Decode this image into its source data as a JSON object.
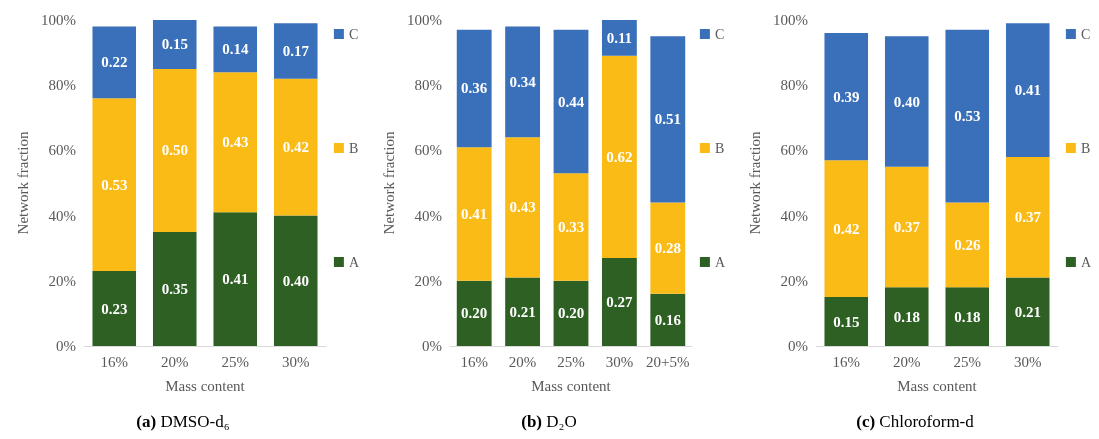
{
  "chart_data": [
    {
      "type": "bar",
      "title": "(a) DMSO-d₆",
      "xlabel": "Mass content",
      "ylabel": "Network fraction",
      "categories": [
        "16%",
        "20%",
        "25%",
        "30%"
      ],
      "stacked": true,
      "legend": "right",
      "ylim": [
        0,
        1
      ],
      "yticks": [
        {
          "value": 0,
          "label": "0%"
        },
        {
          "value": 0.2,
          "label": "20%"
        },
        {
          "value": 0.4,
          "label": "40%"
        },
        {
          "value": 0.6,
          "label": "60%"
        },
        {
          "value": 0.8,
          "label": "80%"
        },
        {
          "value": 1,
          "label": "100%"
        }
      ],
      "grid": false,
      "series": [
        {
          "name": "A",
          "color": "#2e6023",
          "values": [
            0.23,
            0.35,
            0.41,
            0.4
          ],
          "value_labels": [
            "0.23",
            "0.35",
            "0.41",
            "0.40"
          ]
        },
        {
          "name": "B",
          "color": "#fbbb17",
          "values": [
            0.53,
            0.5,
            0.43,
            0.42
          ],
          "value_labels": [
            "0.53",
            "0.50",
            "0.43",
            "0.42"
          ]
        },
        {
          "name": "C",
          "color": "#3a70b9",
          "values": [
            0.22,
            0.15,
            0.14,
            0.17
          ],
          "value_labels": [
            "0.22",
            "0.15",
            "0.14",
            "0.17"
          ]
        }
      ]
    },
    {
      "type": "bar",
      "title": "(b) D₂O",
      "xlabel": "Mass content",
      "ylabel": "Network fraction",
      "categories": [
        "16%",
        "20%",
        "25%",
        "30%",
        "20+5%"
      ],
      "stacked": true,
      "legend": "right",
      "ylim": [
        0,
        1
      ],
      "yticks": [
        {
          "value": 0,
          "label": "0%"
        },
        {
          "value": 0.2,
          "label": "20%"
        },
        {
          "value": 0.4,
          "label": "40%"
        },
        {
          "value": 0.6,
          "label": "60%"
        },
        {
          "value": 0.8,
          "label": "80%"
        },
        {
          "value": 1,
          "label": "100%"
        }
      ],
      "grid": false,
      "series": [
        {
          "name": "A",
          "color": "#2e6023",
          "values": [
            0.2,
            0.21,
            0.2,
            0.27,
            0.16
          ],
          "value_labels": [
            "0.20",
            "0.21",
            "0.20",
            "0.27",
            "0.16"
          ]
        },
        {
          "name": "B",
          "color": "#fbbb17",
          "values": [
            0.41,
            0.43,
            0.33,
            0.62,
            0.28
          ],
          "value_labels": [
            "0.41",
            "0.43",
            "0.33",
            "0.62",
            "0.28"
          ]
        },
        {
          "name": "C",
          "color": "#3a70b9",
          "values": [
            0.36,
            0.34,
            0.44,
            0.11,
            0.51
          ],
          "value_labels": [
            "0.36",
            "0.34",
            "0.44",
            "0.11",
            "0.51"
          ]
        }
      ]
    },
    {
      "type": "bar",
      "title": "(c) Chloroform-d",
      "xlabel": "Mass content",
      "ylabel": "Network fraction",
      "categories": [
        "16%",
        "20%",
        "25%",
        "30%"
      ],
      "stacked": true,
      "legend": "right",
      "ylim": [
        0,
        1
      ],
      "yticks": [
        {
          "value": 0,
          "label": "0%"
        },
        {
          "value": 0.2,
          "label": "20%"
        },
        {
          "value": 0.4,
          "label": "40%"
        },
        {
          "value": 0.6,
          "label": "60%"
        },
        {
          "value": 0.8,
          "label": "80%"
        },
        {
          "value": 1,
          "label": "100%"
        }
      ],
      "grid": false,
      "series": [
        {
          "name": "A",
          "color": "#2e6023",
          "values": [
            0.15,
            0.18,
            0.18,
            0.21
          ],
          "value_labels": [
            "0.15",
            "0.18",
            "0.18",
            "0.21"
          ]
        },
        {
          "name": "B",
          "color": "#fbbb17",
          "values": [
            0.42,
            0.37,
            0.26,
            0.37
          ],
          "value_labels": [
            "0.42",
            "0.37",
            "0.26",
            "0.37"
          ]
        },
        {
          "name": "C",
          "color": "#3a70b9",
          "values": [
            0.39,
            0.4,
            0.53,
            0.41
          ],
          "value_labels": [
            "0.39",
            "0.40",
            "0.53",
            "0.41"
          ]
        }
      ]
    }
  ]
}
